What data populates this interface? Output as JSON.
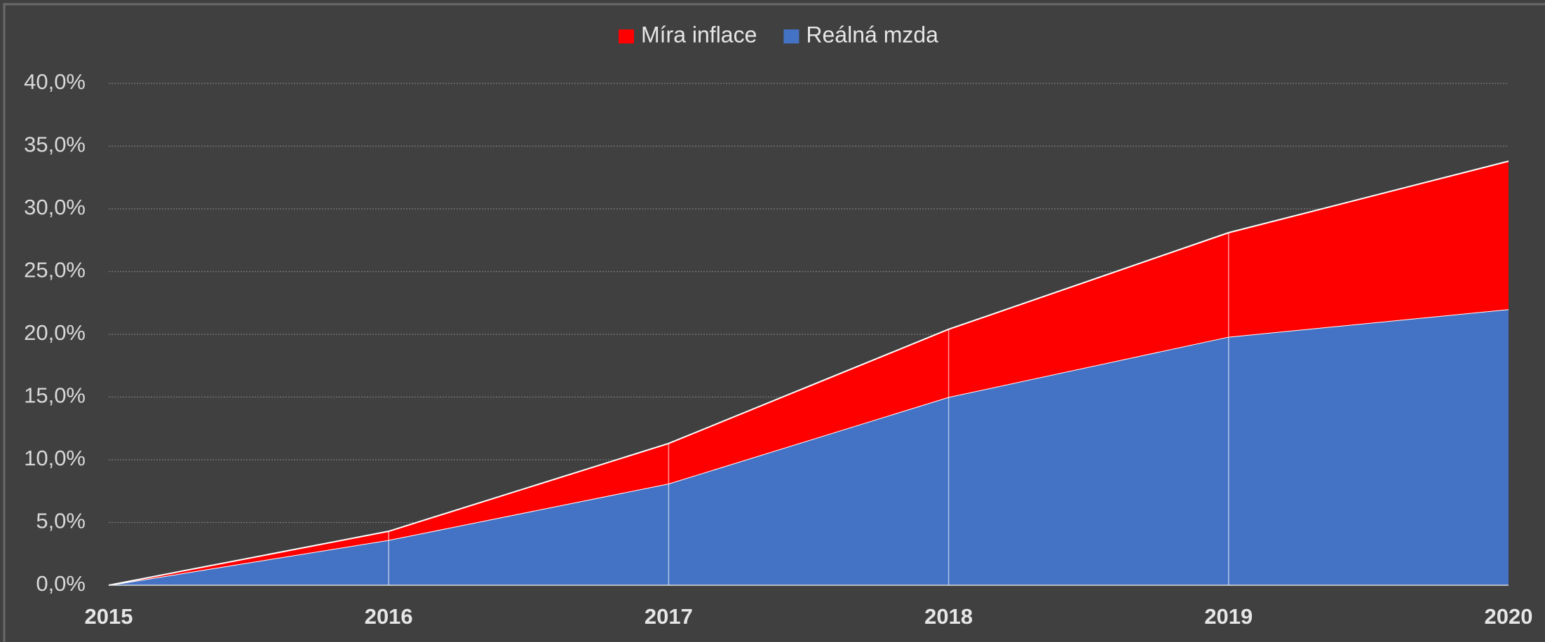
{
  "chart_data": {
    "type": "stacked_area",
    "x": [
      2015,
      2016,
      2017,
      2018,
      2019,
      2020
    ],
    "xlim": [
      2015,
      2020
    ],
    "series": [
      {
        "name": "Míra inflace",
        "color": "#ff0000",
        "values": [
          0,
          0.7,
          3.2,
          5.4,
          8.3,
          11.8
        ]
      },
      {
        "name": "Reálná mzda",
        "color": "#4472c4",
        "values": [
          0,
          3.6,
          8.1,
          15.0,
          19.8,
          22.0
        ]
      }
    ],
    "ylim": [
      0,
      40
    ],
    "yticks": [
      {
        "value": 0,
        "label": "0,0%"
      },
      {
        "value": 5,
        "label": "5,0%"
      },
      {
        "value": 10,
        "label": "10,0%"
      },
      {
        "value": 15,
        "label": "15,0%"
      },
      {
        "value": 20,
        "label": "20,0%"
      },
      {
        "value": 25,
        "label": "25,0%"
      },
      {
        "value": 30,
        "label": "30,0%"
      },
      {
        "value": 35,
        "label": "35,0%"
      },
      {
        "value": 40,
        "label": "40,0%"
      }
    ],
    "grid": true,
    "legend": "top"
  }
}
